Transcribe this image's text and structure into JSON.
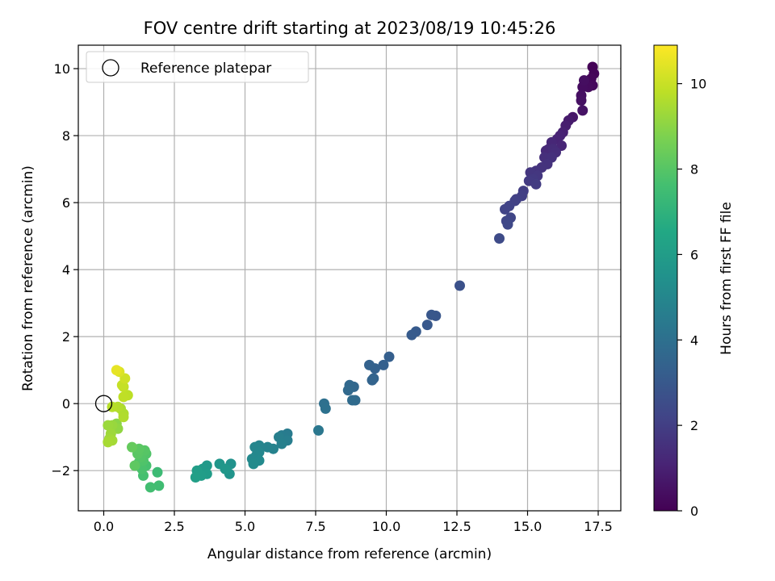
{
  "chart_data": {
    "type": "scatter",
    "title": "FOV centre drift starting at 2023/08/19 10:45:26",
    "xlabel": "Angular distance from reference (arcmin)",
    "ylabel": "Rotation from reference (arcmin)",
    "xlim": [
      -0.9,
      18.3
    ],
    "ylim": [
      -3.2,
      10.7
    ],
    "xticks": [
      0.0,
      2.5,
      5.0,
      7.5,
      10.0,
      12.5,
      15.0,
      17.5
    ],
    "xtick_labels": [
      "0.0",
      "2.5",
      "5.0",
      "7.5",
      "10.0",
      "12.5",
      "15.0",
      "17.5"
    ],
    "yticks": [
      -2,
      0,
      2,
      4,
      6,
      8,
      10
    ],
    "ytick_labels": [
      "−2",
      "0",
      "2",
      "4",
      "6",
      "8",
      "10"
    ],
    "grid": true,
    "legend": {
      "position": "top-left",
      "entries": [
        "Reference platepar"
      ]
    },
    "reference_point": {
      "x": 0.0,
      "y": 0.0
    },
    "colorbar": {
      "label": "Hours from first FF file",
      "min": 0,
      "max": 10.9,
      "ticks": [
        0,
        2,
        4,
        6,
        8,
        10
      ],
      "tick_labels": [
        "0",
        "2",
        "4",
        "6",
        "8",
        "10"
      ],
      "colormap": "viridis"
    },
    "points": [
      [
        17.3,
        10.05,
        0.05
      ],
      [
        17.35,
        9.85,
        0.1
      ],
      [
        17.25,
        9.7,
        0.15
      ],
      [
        17.1,
        9.6,
        0.2
      ],
      [
        17.3,
        9.5,
        0.25
      ],
      [
        17.15,
        9.45,
        0.3
      ],
      [
        16.95,
        9.45,
        0.35
      ],
      [
        17.0,
        9.65,
        0.4
      ],
      [
        16.9,
        9.2,
        0.45
      ],
      [
        16.9,
        9.05,
        0.5
      ],
      [
        16.95,
        8.75,
        0.55
      ],
      [
        16.6,
        8.55,
        0.7
      ],
      [
        16.45,
        8.45,
        0.8
      ],
      [
        16.35,
        8.3,
        0.9
      ],
      [
        16.25,
        8.1,
        1.0
      ],
      [
        16.15,
        8.0,
        1.05
      ],
      [
        16.05,
        7.9,
        1.1
      ],
      [
        16.2,
        7.7,
        1.15
      ],
      [
        15.85,
        7.8,
        1.2
      ],
      [
        15.75,
        7.6,
        1.25
      ],
      [
        15.65,
        7.55,
        1.3
      ],
      [
        15.9,
        7.6,
        1.35
      ],
      [
        16.0,
        7.5,
        1.4
      ],
      [
        15.6,
        7.35,
        1.45
      ],
      [
        15.85,
        7.35,
        1.5
      ],
      [
        15.7,
        7.15,
        1.55
      ],
      [
        15.5,
        7.05,
        1.6
      ],
      [
        15.3,
        6.95,
        1.65
      ],
      [
        15.1,
        6.9,
        1.7
      ],
      [
        15.35,
        6.8,
        1.75
      ],
      [
        15.2,
        6.7,
        1.8
      ],
      [
        15.05,
        6.65,
        1.85
      ],
      [
        15.3,
        6.55,
        1.9
      ],
      [
        14.85,
        6.35,
        1.95
      ],
      [
        14.8,
        6.2,
        2.0
      ],
      [
        14.6,
        6.1,
        2.05
      ],
      [
        14.55,
        6.05,
        2.1
      ],
      [
        14.35,
        5.9,
        2.15
      ],
      [
        14.2,
        5.8,
        2.2
      ],
      [
        14.4,
        5.55,
        2.25
      ],
      [
        14.25,
        5.45,
        2.3
      ],
      [
        14.3,
        5.35,
        2.35
      ],
      [
        14.0,
        4.93,
        2.45
      ],
      [
        12.6,
        3.52,
        2.7
      ],
      [
        11.75,
        2.62,
        2.9
      ],
      [
        11.6,
        2.65,
        2.95
      ],
      [
        11.45,
        2.35,
        3.0
      ],
      [
        11.05,
        2.15,
        3.05
      ],
      [
        10.9,
        2.05,
        3.1
      ],
      [
        10.1,
        1.4,
        3.25
      ],
      [
        9.9,
        1.15,
        3.3
      ],
      [
        9.6,
        1.05,
        3.35
      ],
      [
        9.4,
        1.15,
        3.4
      ],
      [
        9.55,
        0.75,
        3.45
      ],
      [
        9.5,
        0.7,
        3.5
      ],
      [
        8.85,
        0.5,
        3.6
      ],
      [
        8.7,
        0.55,
        3.65
      ],
      [
        8.65,
        0.4,
        3.7
      ],
      [
        8.9,
        0.1,
        3.75
      ],
      [
        8.8,
        0.1,
        3.8
      ],
      [
        7.8,
        0.0,
        4.0
      ],
      [
        7.85,
        -0.15,
        4.05
      ],
      [
        7.6,
        -0.8,
        4.3
      ],
      [
        6.5,
        -0.9,
        4.5
      ],
      [
        6.3,
        -0.95,
        4.55
      ],
      [
        6.5,
        -1.1,
        4.6
      ],
      [
        6.2,
        -1.0,
        4.65
      ],
      [
        6.3,
        -1.2,
        4.7
      ],
      [
        6.0,
        -1.35,
        4.8
      ],
      [
        5.8,
        -1.3,
        4.85
      ],
      [
        5.5,
        -1.25,
        4.9
      ],
      [
        5.35,
        -1.3,
        4.95
      ],
      [
        5.5,
        -1.45,
        5.0
      ],
      [
        5.4,
        -1.55,
        5.05
      ],
      [
        5.25,
        -1.65,
        5.1
      ],
      [
        5.5,
        -1.7,
        5.15
      ],
      [
        5.3,
        -1.8,
        5.2
      ],
      [
        4.5,
        -1.8,
        5.5
      ],
      [
        4.45,
        -2.1,
        5.6
      ],
      [
        4.1,
        -1.8,
        5.7
      ],
      [
        4.3,
        -1.95,
        5.75
      ],
      [
        3.65,
        -1.85,
        5.85
      ],
      [
        3.5,
        -1.95,
        5.9
      ],
      [
        3.65,
        -2.1,
        5.95
      ],
      [
        3.45,
        -2.15,
        6.0
      ],
      [
        3.3,
        -2.0,
        6.05
      ],
      [
        3.25,
        -2.2,
        6.1
      ],
      [
        1.9,
        -2.05,
        7.4
      ],
      [
        1.95,
        -2.45,
        7.5
      ],
      [
        1.65,
        -2.5,
        7.55
      ],
      [
        1.4,
        -2.15,
        7.65
      ],
      [
        1.5,
        -1.85,
        7.7
      ],
      [
        1.35,
        -1.95,
        7.75
      ],
      [
        1.25,
        -1.75,
        7.8
      ],
      [
        1.4,
        -1.7,
        7.85
      ],
      [
        1.5,
        -1.5,
        7.9
      ],
      [
        1.3,
        -1.6,
        7.95
      ],
      [
        1.45,
        -1.4,
        8.0
      ],
      [
        1.2,
        -1.5,
        8.05
      ],
      [
        1.25,
        -1.35,
        8.1
      ],
      [
        1.1,
        -1.85,
        8.15
      ],
      [
        1.0,
        -1.3,
        8.3
      ],
      [
        0.45,
        -0.6,
        9.0
      ],
      [
        0.5,
        -0.75,
        9.1
      ],
      [
        0.3,
        -0.65,
        9.2
      ],
      [
        0.15,
        -0.65,
        9.25
      ],
      [
        0.25,
        -0.9,
        9.3
      ],
      [
        0.2,
        -1.05,
        9.35
      ],
      [
        0.3,
        -1.1,
        9.4
      ],
      [
        0.15,
        -1.15,
        9.45
      ],
      [
        0.6,
        -0.15,
        9.5
      ],
      [
        0.7,
        -0.3,
        9.55
      ],
      [
        0.7,
        -0.4,
        9.6
      ],
      [
        0.5,
        -0.1,
        9.65
      ],
      [
        0.3,
        -0.1,
        9.7
      ],
      [
        0.85,
        0.25,
        9.8
      ],
      [
        0.7,
        0.2,
        9.85
      ],
      [
        0.7,
        0.5,
        9.9
      ],
      [
        0.65,
        0.55,
        9.95
      ],
      [
        0.75,
        0.75,
        10.1
      ],
      [
        0.55,
        0.95,
        10.3
      ],
      [
        0.45,
        1.0,
        10.5
      ]
    ]
  }
}
